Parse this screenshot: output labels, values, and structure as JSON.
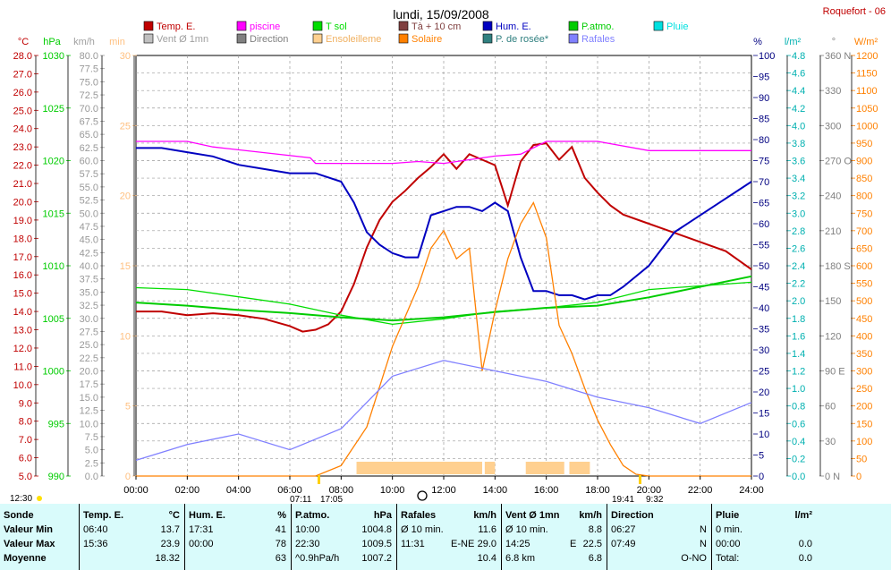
{
  "header": {
    "title": "lundi, 15/09/2008",
    "station": "Roquefort - 06"
  },
  "legend": [
    {
      "label": "Temp. E.",
      "color": "#c00000"
    },
    {
      "label": "piscine",
      "color": "#ff00ff"
    },
    {
      "label": "T sol",
      "color": "#00dd00"
    },
    {
      "label": "Tà + 10 cm",
      "color": "#804040"
    },
    {
      "label": "Hum. E.",
      "color": "#0000c0"
    },
    {
      "label": "P.atmo.",
      "color": "#00cc00"
    },
    {
      "label": "Pluie",
      "color": "#00e0e0"
    },
    {
      "label": "Vent Ø 1mn",
      "color": "#c0c0c0"
    },
    {
      "label": "Direction",
      "color": "#808080"
    },
    {
      "label": "Ensoleilleme",
      "color": "#ffd090"
    },
    {
      "label": "Solaire",
      "color": "#ff8000"
    },
    {
      "label": "P. de rosée*",
      "color": "#308080"
    },
    {
      "label": "Rafales",
      "color": "#8080ff"
    }
  ],
  "axes_titles": {
    "celsius": "°C",
    "hpa": "hPa",
    "kmh": "km/h",
    "min": "min",
    "percent": "%",
    "lm2": "l/m²",
    "deg": "°",
    "wm2": "W/m²"
  },
  "axes": {
    "celsius": [
      "28.0",
      "27.0",
      "26.0",
      "25.0",
      "24.0",
      "23.0",
      "22.0",
      "21.0",
      "20.0",
      "19.0",
      "18.0",
      "17.0",
      "16.0",
      "15.0",
      "14.0",
      "13.0",
      "12.0",
      "11.0",
      "10.0",
      "9.0",
      "8.0",
      "7.0",
      "6.0",
      "5.0"
    ],
    "hpa": [
      "1030",
      "1025",
      "1020",
      "1015",
      "1010",
      "1005",
      "1000",
      "995",
      "990"
    ],
    "kmh": [
      "80.0",
      "77.5",
      "75.0",
      "72.5",
      "70.0",
      "67.5",
      "65.0",
      "62.5",
      "60.0",
      "57.5",
      "55.0",
      "52.5",
      "50.0",
      "47.5",
      "45.0",
      "42.5",
      "40.0",
      "37.5",
      "35.0",
      "32.5",
      "30.0",
      "27.5",
      "25.0",
      "22.5",
      "20.0",
      "17.5",
      "15.0",
      "12.5",
      "10.0",
      "7.5",
      "5.0",
      "2.5",
      "0.0"
    ],
    "min": [
      "30",
      "25",
      "20",
      "15",
      "10",
      "5",
      "0"
    ],
    "percent": [
      "100",
      "95",
      "90",
      "85",
      "80",
      "75",
      "70",
      "65",
      "60",
      "55",
      "50",
      "45",
      "40",
      "35",
      "30",
      "25",
      "20",
      "15",
      "10",
      "5",
      "0"
    ],
    "lm2": [
      "4.8",
      "4.6",
      "4.4",
      "4.2",
      "4.0",
      "3.8",
      "3.6",
      "3.4",
      "3.2",
      "3.0",
      "2.8",
      "2.6",
      "2.4",
      "2.2",
      "2.0",
      "1.8",
      "1.6",
      "1.4",
      "1.2",
      "1.0",
      "0.8",
      "0.6",
      "0.4",
      "0.2",
      "0.0"
    ],
    "deg": [
      "360 N",
      "330",
      "300",
      "270 O",
      "240",
      "210",
      "180 S",
      "150",
      "120",
      "90 E",
      "60",
      "30",
      "0   N"
    ],
    "wm2": [
      "1200",
      "1150",
      "1100",
      "1050",
      "1000",
      "950",
      "900",
      "850",
      "800",
      "750",
      "700",
      "650",
      "600",
      "550",
      "500",
      "450",
      "400",
      "350",
      "300",
      "250",
      "200",
      "150",
      "100",
      "50",
      "0"
    ],
    "time": [
      "00:00",
      "02:00",
      "04:00",
      "06:00",
      "08:00",
      "10:00",
      "12:00",
      "14:00",
      "16:00",
      "18:00",
      "20:00",
      "22:00",
      "24:00"
    ]
  },
  "markers": {
    "moonrise": "12:30",
    "sunrise": "07:11",
    "sunrise_dur": "17:05",
    "sunset": "19:41",
    "sunset_dur": "9:32"
  },
  "chart_data": {
    "type": "line",
    "x_unit": "hour",
    "xlim": [
      0,
      24
    ],
    "series": [
      {
        "name": "Temp. E.",
        "axis": "celsius",
        "ylim": [
          5,
          28
        ],
        "color": "#c00000",
        "x": [
          0,
          1,
          2,
          3,
          4,
          5,
          6,
          6.5,
          7,
          7.5,
          8,
          8.5,
          9,
          9.5,
          10,
          10.5,
          11,
          11.5,
          12,
          12.5,
          13,
          13.5,
          14,
          14.5,
          15,
          15.5,
          16,
          16.5,
          17,
          17.5,
          18,
          18.5,
          19,
          20,
          21,
          22,
          23,
          24
        ],
        "y": [
          14.0,
          14.0,
          13.8,
          13.9,
          13.8,
          13.6,
          13.2,
          12.9,
          13.0,
          13.3,
          14.0,
          15.5,
          17.5,
          19.0,
          20.0,
          20.6,
          21.3,
          21.9,
          22.6,
          21.8,
          22.6,
          22.3,
          22.0,
          19.8,
          22.2,
          23.1,
          23.2,
          22.3,
          23.0,
          21.3,
          20.5,
          19.8,
          19.3,
          18.8,
          18.3,
          17.8,
          17.3,
          16.3
        ]
      },
      {
        "name": "piscine",
        "axis": "celsius",
        "ylim": [
          5,
          28
        ],
        "color": "#ff00ff",
        "x": [
          0,
          2,
          3,
          6.8,
          7,
          10,
          11,
          12,
          14,
          15,
          16,
          18,
          20,
          24
        ],
        "y": [
          23.3,
          23.3,
          23.0,
          22.4,
          22.1,
          22.1,
          22.2,
          22.1,
          22.5,
          22.6,
          23.3,
          23.3,
          22.8,
          22.8
        ]
      },
      {
        "name": "T sol",
        "axis": "celsius",
        "ylim": [
          5,
          28
        ],
        "color": "#00dd00",
        "x": [
          0,
          2,
          4,
          6,
          8,
          10,
          12,
          14,
          16,
          18,
          20,
          22,
          24
        ],
        "y": [
          15.3,
          15.2,
          14.8,
          14.4,
          13.8,
          13.3,
          13.6,
          14.0,
          14.2,
          14.5,
          15.2,
          15.4,
          15.6
        ]
      },
      {
        "name": "Hum. E.",
        "axis": "percent",
        "ylim": [
          0,
          100
        ],
        "color": "#0000c0",
        "x": [
          0,
          1,
          2,
          3,
          4,
          5,
          6,
          7,
          8,
          8.5,
          9,
          9.5,
          10,
          10.5,
          11,
          11.5,
          12,
          12.5,
          13,
          13.5,
          14,
          14.5,
          15,
          15.5,
          16,
          16.5,
          17,
          17.5,
          18,
          18.5,
          19,
          20,
          21,
          22,
          23,
          24
        ],
        "y": [
          78,
          78,
          77,
          76,
          74,
          73,
          72,
          72,
          70,
          65,
          58,
          55,
          53,
          52,
          52,
          62,
          63,
          64,
          64,
          63,
          65,
          63,
          52,
          44,
          44,
          43,
          43,
          42,
          43,
          43,
          45,
          50,
          58,
          62,
          66,
          70
        ]
      },
      {
        "name": "P.atmo.",
        "axis": "hpa",
        "ylim": [
          990,
          1030
        ],
        "color": "#00cc00",
        "x": [
          0,
          2,
          4,
          6,
          8,
          10,
          12,
          14,
          16,
          18,
          20,
          22,
          24
        ],
        "y": [
          1006.5,
          1006.2,
          1005.8,
          1005.5,
          1005.1,
          1004.8,
          1005.1,
          1005.6,
          1006.0,
          1006.2,
          1007.0,
          1008.0,
          1009.0
        ]
      },
      {
        "name": "Solaire",
        "axis": "wm2",
        "ylim": [
          0,
          1200
        ],
        "color": "#ff8000",
        "x": [
          0,
          7,
          8,
          9,
          10,
          11,
          11.5,
          12,
          12.5,
          13,
          13.5,
          14,
          14.5,
          15,
          15.5,
          16,
          16.5,
          17,
          17.5,
          18,
          18.5,
          19,
          19.5,
          20,
          24
        ],
        "y": [
          0,
          0,
          30,
          140,
          370,
          540,
          650,
          700,
          620,
          650,
          300,
          470,
          620,
          720,
          780,
          680,
          430,
          350,
          250,
          160,
          90,
          30,
          5,
          0,
          0
        ]
      },
      {
        "name": "Rafales",
        "axis": "kmh",
        "ylim": [
          0,
          80
        ],
        "color": "#8080ff",
        "x": [
          0,
          2,
          4,
          6,
          8,
          10,
          12,
          14,
          16,
          18,
          20,
          22,
          24
        ],
        "y": [
          3,
          6,
          8,
          5,
          9,
          19,
          22,
          20,
          18,
          15,
          13,
          10,
          14
        ]
      }
    ]
  },
  "summary": {
    "headers": {
      "sonde": "Sonde",
      "temp": "Temp. E.",
      "temp_unit": "°C",
      "hum": "Hum. E.",
      "hum_unit": "%",
      "patmo": "P.atmo.",
      "patmo_unit": "hPa",
      "raf": "Rafales",
      "raf_unit": "km/h",
      "vent": "Vent Ø 1mn",
      "vent_unit": "km/h",
      "dir": "Direction",
      "pluie": "Pluie",
      "pluie_unit": "l/m²"
    },
    "row_labels": [
      "Valeur Min",
      "Valeur Max",
      "Moyenne"
    ],
    "temp": [
      [
        "06:40",
        "13.7"
      ],
      [
        "15:36",
        "23.9"
      ],
      [
        "",
        "18.32"
      ]
    ],
    "hum": [
      [
        "17:31",
        "41"
      ],
      [
        "00:00",
        "78"
      ],
      [
        "",
        "63"
      ]
    ],
    "patmo": [
      [
        "10:00",
        "1004.8"
      ],
      [
        "22:30",
        "1009.5"
      ],
      [
        "^0.9hPa/h",
        "1007.2"
      ]
    ],
    "raf": [
      [
        "Ø 10 min.",
        "",
        "11.6"
      ],
      [
        "11:31",
        "E-NE",
        "29.0"
      ],
      [
        "",
        "",
        "10.4"
      ]
    ],
    "vent": [
      [
        "Ø 10 min.",
        "",
        "8.8"
      ],
      [
        "14:25",
        "E",
        "22.5"
      ],
      [
        "6.8 km",
        "",
        "6.8"
      ]
    ],
    "dir": [
      [
        "06:27",
        "N"
      ],
      [
        "07:49",
        "N"
      ],
      [
        "",
        "O-NO"
      ]
    ],
    "pluie": [
      [
        "0 min.",
        ""
      ],
      [
        "00:00",
        "0.0"
      ],
      [
        "Total:",
        "0.0"
      ]
    ]
  }
}
